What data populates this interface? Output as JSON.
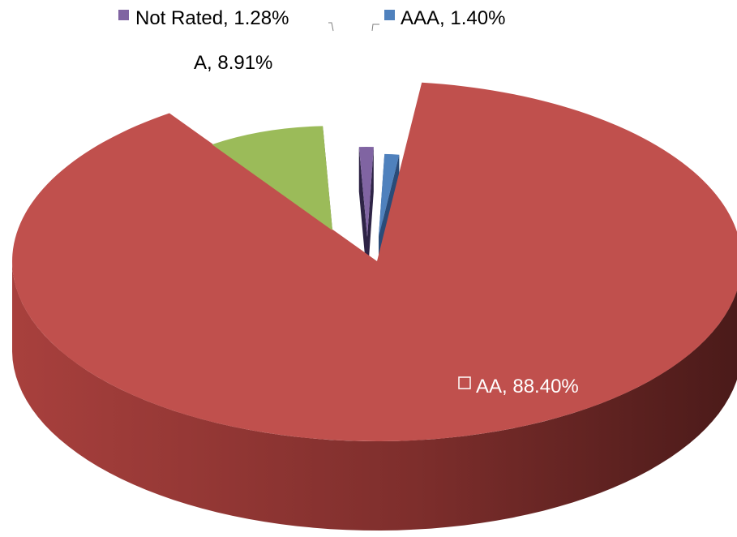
{
  "chart_data": {
    "type": "pie",
    "title": "",
    "slices": [
      {
        "name": "AAA",
        "value": 1.4,
        "label": "AAA, 1.40%",
        "color": "#4F81BD",
        "side_color": "#2A4B78"
      },
      {
        "name": "AA",
        "value": 88.4,
        "label": "AA, 88.40%",
        "color": "#C0504D",
        "side_color": "#7A2B29"
      },
      {
        "name": "A",
        "value": 8.91,
        "label": "A, 8.91%",
        "color": "#9BBB59",
        "side_color": "#3F521C"
      },
      {
        "name": "Not Rated",
        "value": 1.28,
        "label": "Not Rated, 1.28%",
        "color": "#8064A2",
        "side_color": "#2E2446"
      }
    ],
    "style": "3d-exploded",
    "legend": "none"
  }
}
